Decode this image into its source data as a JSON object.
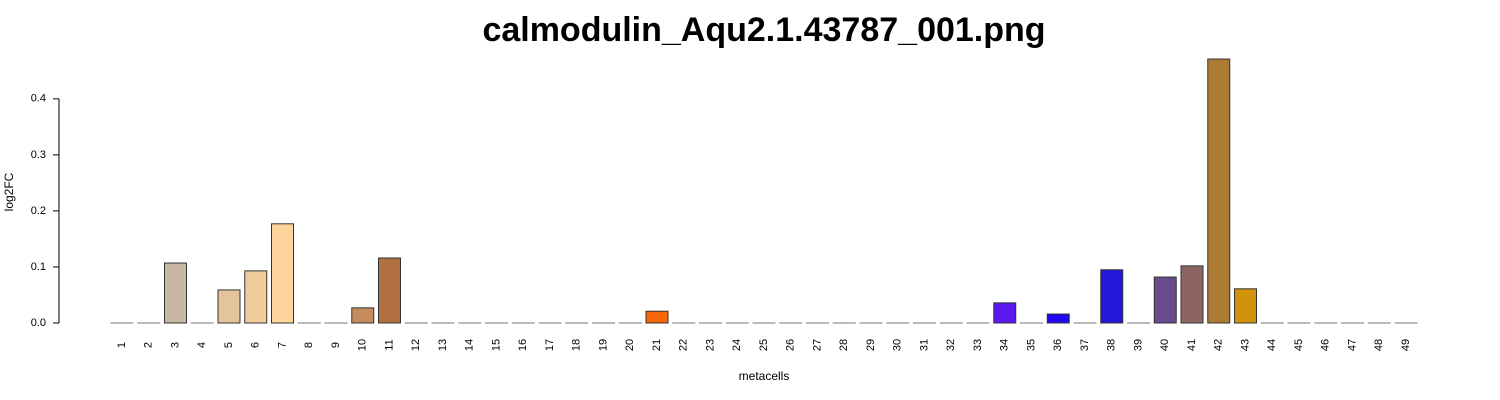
{
  "chart_data": {
    "type": "bar",
    "title": "calmodulin_Aqu2.1.43787_001.png",
    "x_label": "metacells",
    "y_label": "log2FC",
    "categories": [
      "1",
      "2",
      "3",
      "4",
      "5",
      "6",
      "7",
      "8",
      "9",
      "10",
      "11",
      "12",
      "13",
      "14",
      "15",
      "16",
      "17",
      "18",
      "19",
      "20",
      "21",
      "22",
      "23",
      "24",
      "25",
      "26",
      "27",
      "28",
      "29",
      "30",
      "31",
      "32",
      "33",
      "34",
      "35",
      "36",
      "37",
      "38",
      "39",
      "40",
      "41",
      "42",
      "43",
      "44",
      "45",
      "46",
      "47",
      "48",
      "49"
    ],
    "values": [
      0,
      0,
      0.107,
      0,
      0.059,
      0.093,
      0.177,
      0,
      0,
      0.027,
      0.116,
      0,
      0,
      0,
      0,
      0,
      0,
      0,
      0,
      0,
      0.021,
      0,
      0,
      0,
      0,
      0,
      0,
      0,
      0,
      0,
      0,
      0,
      0,
      0.036,
      0,
      0.016,
      0,
      0.095,
      0,
      0.082,
      0.102,
      0.471,
      0.061,
      0,
      0,
      0,
      0,
      0,
      0
    ],
    "colors": [
      null,
      null,
      "#c8b8a2",
      null,
      "#e4c49a",
      "#f0cc9a",
      "#fdd49c",
      null,
      null,
      "#c48c5c",
      "#b07040",
      null,
      null,
      null,
      null,
      null,
      null,
      null,
      null,
      null,
      "#f86808",
      null,
      null,
      null,
      null,
      null,
      null,
      null,
      null,
      null,
      null,
      null,
      null,
      "#5c18f0",
      null,
      "#2008f0",
      null,
      "#2418d8",
      null,
      "#684c8c",
      "#8c6460",
      "#ac7c34",
      "#d0940c",
      null,
      null,
      null,
      null,
      null,
      null
    ],
    "ylim": [
      0,
      0.48
    ],
    "yticks": [
      {
        "value": 0,
        "label": "0.0"
      },
      0.1,
      0.2,
      0.3,
      0.4
    ]
  }
}
